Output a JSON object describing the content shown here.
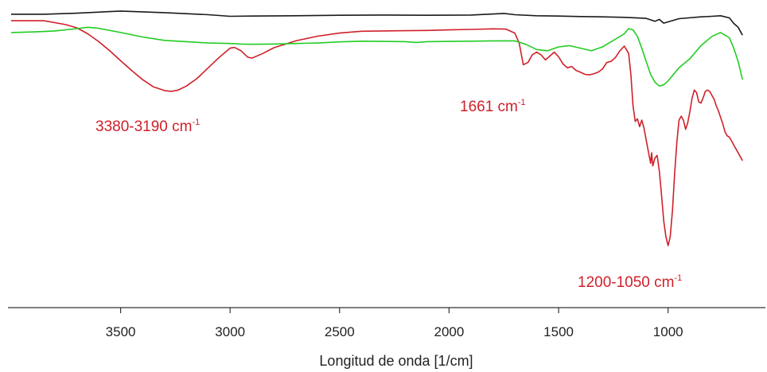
{
  "chart_data": {
    "type": "line",
    "title": "",
    "xlabel": "Longitud de onda [1/cm]",
    "ylabel": "",
    "xlim": [
      4000,
      650
    ],
    "x_reversed": true,
    "ylim": [
      0,
      100
    ],
    "y_axis_visible": false,
    "grid": false,
    "legend": "none",
    "xticks": [
      3500,
      3000,
      2500,
      2000,
      1500,
      1000
    ],
    "xtick_labels": [
      "3500",
      "3000",
      "2500",
      "2000",
      "1500",
      "1000"
    ],
    "colors": {
      "black": "#1a1a1a",
      "red": "#d0202a",
      "green": "#22cc22",
      "axis": "#333333"
    },
    "series": [
      {
        "color": "#1a1a1a",
        "x": [
          4000,
          3850,
          3700,
          3500,
          3300,
          3100,
          3000,
          2900,
          2700,
          2500,
          2300,
          2100,
          1900,
          1750,
          1700,
          1600,
          1500,
          1400,
          1300,
          1200,
          1100,
          1060,
          1040,
          1020,
          950,
          850,
          800,
          760,
          720,
          700,
          680,
          660
        ],
        "y": [
          97.0,
          97.0,
          97.4,
          98.2,
          97.6,
          96.8,
          96.2,
          96.3,
          96.4,
          96.6,
          96.7,
          96.6,
          96.7,
          97.3,
          96.8,
          96.4,
          96.3,
          96.1,
          96.0,
          95.8,
          95.4,
          94.3,
          95.0,
          93.6,
          95.3,
          96.0,
          96.2,
          96.4,
          95.6,
          93.5,
          92.0,
          89.0
        ]
      },
      {
        "color": "#d0202a",
        "x": [
          4000,
          3850,
          3750,
          3700,
          3650,
          3600,
          3550,
          3500,
          3450,
          3400,
          3350,
          3300,
          3270,
          3240,
          3200,
          3150,
          3100,
          3050,
          3000,
          2980,
          2950,
          2920,
          2900,
          2850,
          2800,
          2700,
          2600,
          2500,
          2400,
          2300,
          2200,
          2100,
          2000,
          1900,
          1800,
          1740,
          1700,
          1680,
          1661,
          1640,
          1620,
          1600,
          1580,
          1560,
          1540,
          1520,
          1500,
          1480,
          1460,
          1440,
          1420,
          1400,
          1380,
          1360,
          1340,
          1320,
          1300,
          1280,
          1260,
          1240,
          1220,
          1200,
          1180,
          1170,
          1160,
          1150,
          1140,
          1130,
          1120,
          1110,
          1100,
          1090,
          1080,
          1075,
          1070,
          1060,
          1050,
          1040,
          1030,
          1020,
          1010,
          1000,
          990,
          980,
          970,
          960,
          950,
          940,
          930,
          920,
          910,
          900,
          890,
          880,
          870,
          860,
          850,
          840,
          830,
          820,
          810,
          800,
          790,
          780,
          770,
          760,
          750,
          740,
          730,
          720,
          710,
          700,
          690,
          680,
          670,
          660
        ],
        "y": [
          94.5,
          94.5,
          93.0,
          91.8,
          89.5,
          86.5,
          83.0,
          79.2,
          75.5,
          72.0,
          69.2,
          67.8,
          67.5,
          67.9,
          69.5,
          72.5,
          76.5,
          80.5,
          84.0,
          84.3,
          83.0,
          80.6,
          80.2,
          82.0,
          84.2,
          86.8,
          88.6,
          89.8,
          90.5,
          90.6,
          90.7,
          90.8,
          91.0,
          91.2,
          91.4,
          91.3,
          89.8,
          86.0,
          77.7,
          78.5,
          81.5,
          82.5,
          81.5,
          79.5,
          81.0,
          82.5,
          80.7,
          78.0,
          76.5,
          77.0,
          75.5,
          74.8,
          74.0,
          73.8,
          74.2,
          74.8,
          76.0,
          78.5,
          79.0,
          80.5,
          83.0,
          84.8,
          82.0,
          74.0,
          62.0,
          56.0,
          57.0,
          54.0,
          56.5,
          53.5,
          49.0,
          44.5,
          40.0,
          44.0,
          39.0,
          42.0,
          43.0,
          37.0,
          28.0,
          18.0,
          12.0,
          8.5,
          12.0,
          22.0,
          36.0,
          48.0,
          56.5,
          58.0,
          56.5,
          53.0,
          55.5,
          60.0,
          65.0,
          68.0,
          67.0,
          63.5,
          63.0,
          65.0,
          67.5,
          68.0,
          67.5,
          66.0,
          64.5,
          62.0,
          60.0,
          57.5,
          55.0,
          52.0,
          50.5,
          50.0,
          48.5,
          47.0,
          45.5,
          44.0,
          42.5,
          41.0
        ]
      },
      {
        "color": "#22cc22",
        "x": [
          4000,
          3900,
          3800,
          3700,
          3650,
          3600,
          3500,
          3400,
          3300,
          3200,
          3100,
          3000,
          2950,
          2900,
          2800,
          2700,
          2600,
          2500,
          2400,
          2300,
          2200,
          2150,
          2100,
          2000,
          1900,
          1800,
          1740,
          1700,
          1650,
          1600,
          1550,
          1500,
          1450,
          1400,
          1350,
          1300,
          1250,
          1200,
          1180,
          1160,
          1140,
          1120,
          1100,
          1080,
          1060,
          1040,
          1020,
          1000,
          950,
          900,
          850,
          800,
          760,
          720,
          700,
          680,
          660
        ],
        "y": [
          90.0,
          90.2,
          90.6,
          91.5,
          92.0,
          91.6,
          90.0,
          88.3,
          87.0,
          86.5,
          86.0,
          85.8,
          85.6,
          85.5,
          85.6,
          85.8,
          86.0,
          86.4,
          86.7,
          86.6,
          86.5,
          86.2,
          86.5,
          86.6,
          86.7,
          86.8,
          86.8,
          86.8,
          85.5,
          83.5,
          83.0,
          84.5,
          85.0,
          84.0,
          83.0,
          84.5,
          87.0,
          89.5,
          91.5,
          91.0,
          88.5,
          84.0,
          79.0,
          74.0,
          71.0,
          69.5,
          70.0,
          71.5,
          76.5,
          80.0,
          85.0,
          88.5,
          90.0,
          88.0,
          84.0,
          79.0,
          72.0
        ]
      }
    ],
    "annotations": [
      {
        "text": "3380-3190 cm",
        "sup": "-1",
        "color": "#d0202a"
      },
      {
        "text": "1661 cm",
        "sup": "-1",
        "color": "#d0202a"
      },
      {
        "text": "1200-1050 cm",
        "sup": "-1",
        "color": "#d0202a"
      }
    ]
  }
}
